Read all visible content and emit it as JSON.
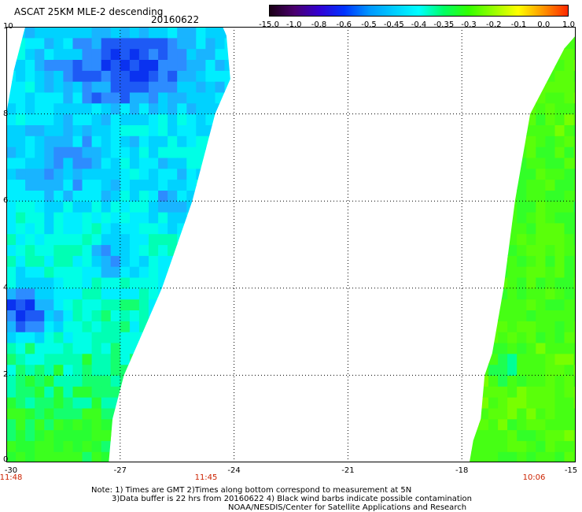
{
  "header": {
    "title": "ASCAT 25KM MLE-2 descending",
    "date": "20160622"
  },
  "colorbar": {
    "labels": [
      "-15.0",
      "-1.0",
      "-0.8",
      "-0.6",
      "-0.5",
      "-0.45",
      "-0.4",
      "-0.35",
      "-0.3",
      "-0.2",
      "-0.1",
      "0.0",
      "1.0"
    ],
    "colors": [
      "#1a0015",
      "#4a006e",
      "#3200d2",
      "#0033ff",
      "#0096ff",
      "#00ccff",
      "#00ffff",
      "#00ff64",
      "#32ff00",
      "#96ff00",
      "#ffff00",
      "#ff9600",
      "#ff2800"
    ]
  },
  "axes": {
    "x_ticks": [
      "-30",
      "-27",
      "-24",
      "-21",
      "-18",
      "-15"
    ],
    "y_ticks": [
      "0",
      "2",
      "4",
      "6",
      "8",
      "10"
    ]
  },
  "times": [
    "11:48",
    "11:45",
    "10:06"
  ],
  "notes": [
    "Note: 1) Times are GMT 2)Times along bottom correspond to measurement at 5N",
    "3)Data buffer is 22 hrs from 20160622 4) Black wind barbs indicate possible contamination",
    "NOAA/NESDIS/Center for Satellite Applications and Research"
  ],
  "chart_data": {
    "type": "heatmap",
    "title": "ASCAT 25KM MLE-2 descending 20160622",
    "xlim": [
      -30,
      -15
    ],
    "ylim": [
      0,
      10
    ],
    "grid": true,
    "swaths": [
      {
        "outline": [
          [
            -30,
            0
          ],
          [
            -27.8,
            0
          ],
          [
            -27.3,
            0
          ],
          [
            -27.2,
            1.0
          ],
          [
            -26.9,
            2.0
          ],
          [
            -26.4,
            3.0
          ],
          [
            -25.9,
            4.0
          ],
          [
            -25.1,
            6.0
          ],
          [
            -24.5,
            8.0
          ],
          [
            -24.1,
            8.8
          ],
          [
            -24.2,
            9.8
          ],
          [
            -24.3,
            10.0
          ],
          [
            -29.5,
            10.0
          ],
          [
            -29.8,
            9.0
          ],
          [
            -30,
            8.0
          ]
        ],
        "dominant_color_range": "-0.6 to -0.3",
        "features": [
          {
            "region": "lat 3-4, lon -30 to -28.5",
            "value": "-0.8 to -0.6"
          },
          {
            "region": "lat 8-10, lon -28.5 to -25",
            "value": "-0.6 to -0.5"
          },
          {
            "region": "lat 4.5-5, lon -27.5 to -27",
            "value": "-0.6 to -0.5"
          },
          {
            "region": "lat 0-2.5",
            "value": "-0.35 to -0.3"
          }
        ]
      },
      {
        "outline": [
          [
            -17.8,
            0
          ],
          [
            -15,
            0
          ],
          [
            -15,
            9.8
          ],
          [
            -15.3,
            9.5
          ],
          [
            -16.2,
            8.0
          ],
          [
            -16.6,
            6.0
          ],
          [
            -16.9,
            4.0
          ],
          [
            -17.2,
            2.5
          ],
          [
            -17.4,
            2.0
          ],
          [
            -17.5,
            1.0
          ],
          [
            -17.7,
            0.5
          ]
        ],
        "dominant_color_range": "-0.35 to -0.2",
        "features": [
          {
            "region": "lat 2-2.5, lon -17.3 to -16.8",
            "value": "-0.45 to -0.4"
          },
          {
            "region": "lat 4-6, lon -16.8 to -15",
            "value": "-0.3 to -0.2"
          }
        ]
      }
    ]
  }
}
